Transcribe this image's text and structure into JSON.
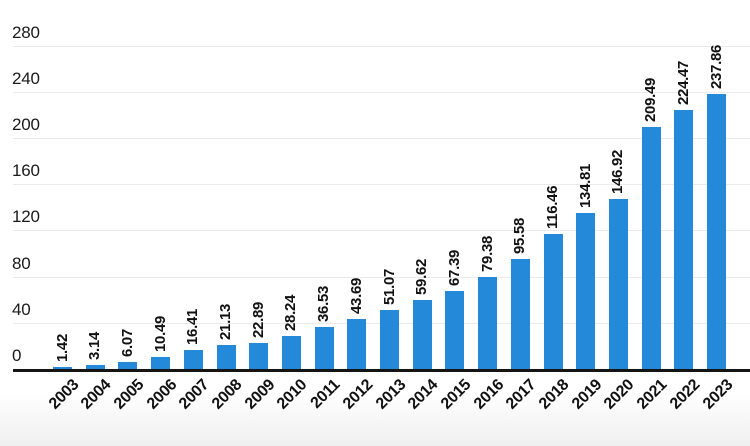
{
  "chart_data": {
    "type": "bar",
    "title": "",
    "xlabel": "",
    "ylabel": "",
    "categories": [
      "2003",
      "2004",
      "2005",
      "2006",
      "2007",
      "2008",
      "2009",
      "2010",
      "2011",
      "2012",
      "2013",
      "2014",
      "2015",
      "2016",
      "2017",
      "2018",
      "2019",
      "2020",
      "2021",
      "2022",
      "2023"
    ],
    "values": [
      1.42,
      3.14,
      6.07,
      10.49,
      16.41,
      21.13,
      22.89,
      28.24,
      36.53,
      43.69,
      51.07,
      59.62,
      67.39,
      79.38,
      95.58,
      116.46,
      134.81,
      146.92,
      209.49,
      224.47,
      237.86
    ],
    "value_labels": [
      "1.42",
      "3.14",
      "6.07",
      "10.49",
      "16.41",
      "21.13",
      "22.89",
      "28.24",
      "36.53",
      "43.69",
      "51.07",
      "59.62",
      "67.39",
      "79.38",
      "95.58",
      "116.46",
      "134.81",
      "146.92",
      "209.49",
      "224.47",
      "237.86"
    ],
    "ylim": [
      0,
      280
    ],
    "yticks": [
      0,
      40,
      80,
      120,
      160,
      200,
      240,
      280
    ],
    "grid": true,
    "legend": "none",
    "value_label_rotation": -90,
    "category_label_rotation": -45
  },
  "colors": {
    "bar": "#2389d8",
    "gridline": "#ebebeb",
    "baseline": "#141414",
    "label_text": "#111111",
    "axis_text": "#1a1a1a",
    "background": "#ffffff",
    "background_fade": "#efefef"
  }
}
